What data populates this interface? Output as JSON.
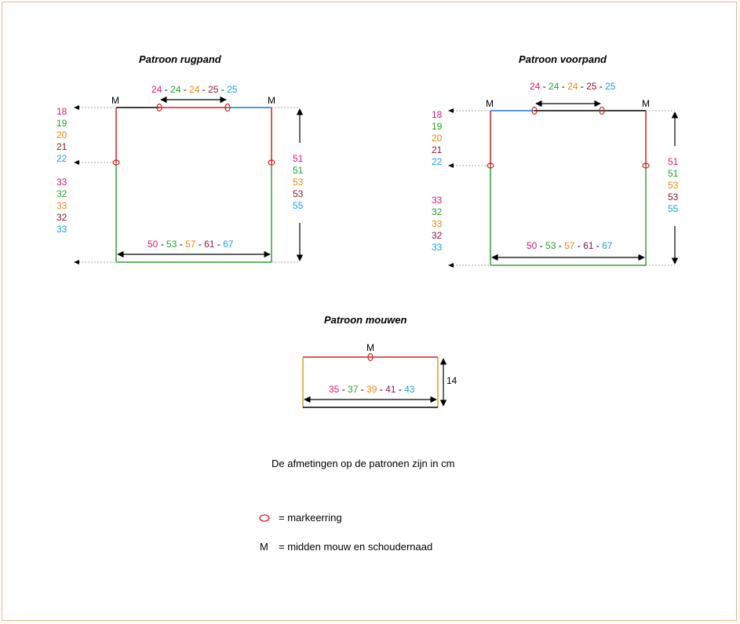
{
  "colors": {
    "size1": "#e0157a",
    "size2": "#2aa02a",
    "size3": "#e8890c",
    "size4": "#8b1a3a",
    "size5": "#1aa3d9",
    "red_line": "#d42020",
    "green_line": "#3a9a3a",
    "blue_line": "#1a7ad0",
    "gold_line": "#d4a020",
    "frame": "#f0b48c"
  },
  "rugpand": {
    "title": "Patroon rugpand",
    "top": [
      "24",
      "24",
      "24",
      "25",
      "25"
    ],
    "m_left": "M",
    "m_right": "M",
    "armhole": [
      "18",
      "19",
      "20",
      "21",
      "22"
    ],
    "side": [
      "33",
      "32",
      "33",
      "32",
      "33"
    ],
    "length": [
      "51",
      "51",
      "53",
      "53",
      "55"
    ],
    "width": [
      "50",
      "53",
      "57",
      "61",
      "67"
    ]
  },
  "voorpand": {
    "title": "Patroon voorpand",
    "top": [
      "24",
      "24",
      "24",
      "25",
      "25"
    ],
    "m_left": "M",
    "m_right": "M",
    "armhole": [
      "18",
      "19",
      "20",
      "21",
      "22"
    ],
    "side": [
      "33",
      "32",
      "33",
      "32",
      "33"
    ],
    "length": [
      "51",
      "51",
      "53",
      "53",
      "55"
    ],
    "width": [
      "50",
      "53",
      "57",
      "61",
      "67"
    ]
  },
  "mouwen": {
    "title": "Patroon mouwen",
    "m": "M",
    "height": "14",
    "width": [
      "35",
      "37",
      "39",
      "41",
      "43"
    ]
  },
  "note": "De afmetingen op de patronen zijn in cm",
  "legend": {
    "marker_text": "= markeerring",
    "m_symbol": "M",
    "m_text": "= midden mouw en schoudernaad"
  }
}
